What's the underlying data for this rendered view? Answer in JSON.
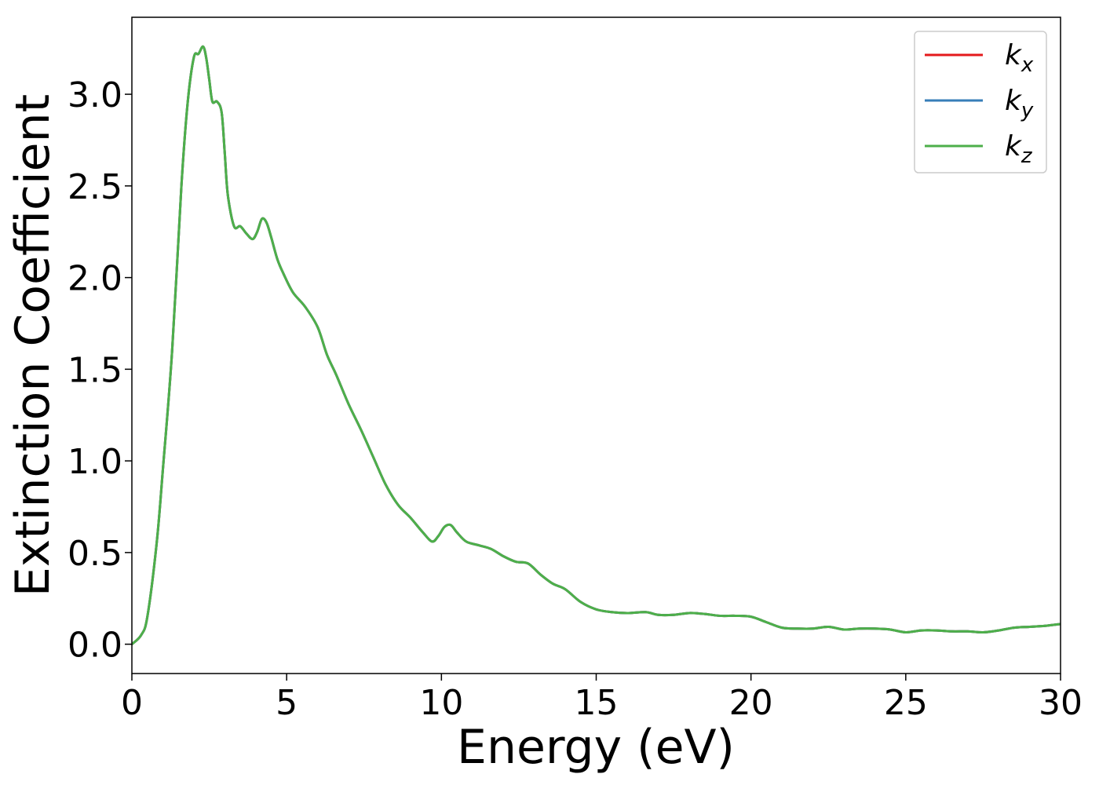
{
  "chart_data": {
    "type": "line",
    "xlabel": "Energy (eV)",
    "ylabel": "Extinction Coefficient",
    "xlim": [
      0,
      30
    ],
    "ylim": [
      -0.16,
      3.42
    ],
    "xticks": [
      0,
      5,
      10,
      15,
      20,
      25,
      30
    ],
    "xtick_labels": [
      "0",
      "5",
      "10",
      "15",
      "20",
      "25",
      "30"
    ],
    "yticks": [
      0.0,
      0.5,
      1.0,
      1.5,
      2.0,
      2.5,
      3.0
    ],
    "ytick_labels": [
      "0.0",
      "0.5",
      "1.0",
      "1.5",
      "2.0",
      "2.5",
      "3.0"
    ],
    "grid": false,
    "legend_position": "top-right",
    "series": [
      {
        "name": "k",
        "subscript": "x",
        "color": "#e41a1c"
      },
      {
        "name": "k",
        "subscript": "y",
        "color": "#377eb8"
      },
      {
        "name": "k",
        "subscript": "z",
        "color": "#4daf4a"
      }
    ],
    "x": [
      0,
      0.3,
      0.5,
      0.8,
      1.0,
      1.3,
      1.6,
      1.8,
      2.0,
      2.15,
      2.3,
      2.4,
      2.5,
      2.6,
      2.75,
      2.9,
      3.0,
      3.1,
      3.3,
      3.5,
      3.7,
      3.9,
      4.05,
      4.2,
      4.35,
      4.5,
      4.7,
      4.9,
      5.2,
      5.6,
      6.0,
      6.3,
      6.6,
      7.0,
      7.4,
      7.8,
      8.2,
      8.6,
      9.0,
      9.4,
      9.7,
      9.9,
      10.1,
      10.3,
      10.5,
      10.8,
      11.2,
      11.6,
      12.0,
      12.4,
      12.8,
      13.2,
      13.6,
      14.0,
      14.5,
      15.0,
      15.5,
      16.0,
      16.6,
      17.0,
      17.5,
      18.0,
      18.5,
      19.0,
      19.5,
      20.0,
      20.5,
      21.0,
      21.5,
      22.0,
      22.5,
      23.0,
      23.5,
      24.0,
      24.5,
      25.0,
      25.5,
      26.0,
      26.5,
      27.0,
      27.5,
      28.0,
      28.5,
      29.0,
      29.5,
      30.0
    ],
    "y": [
      0.0,
      0.05,
      0.15,
      0.55,
      0.95,
      1.6,
      2.5,
      2.95,
      3.2,
      3.22,
      3.26,
      3.2,
      3.08,
      2.96,
      2.96,
      2.9,
      2.68,
      2.45,
      2.28,
      2.28,
      2.24,
      2.21,
      2.25,
      2.32,
      2.3,
      2.22,
      2.1,
      2.02,
      1.92,
      1.84,
      1.73,
      1.58,
      1.47,
      1.31,
      1.17,
      1.02,
      0.87,
      0.76,
      0.69,
      0.61,
      0.56,
      0.59,
      0.64,
      0.65,
      0.61,
      0.56,
      0.54,
      0.52,
      0.48,
      0.45,
      0.44,
      0.38,
      0.33,
      0.3,
      0.23,
      0.19,
      0.175,
      0.17,
      0.175,
      0.16,
      0.16,
      0.17,
      0.165,
      0.155,
      0.155,
      0.15,
      0.12,
      0.09,
      0.085,
      0.085,
      0.095,
      0.08,
      0.085,
      0.085,
      0.08,
      0.065,
      0.075,
      0.075,
      0.07,
      0.07,
      0.065,
      0.075,
      0.09,
      0.095,
      0.1,
      0.11
    ]
  }
}
